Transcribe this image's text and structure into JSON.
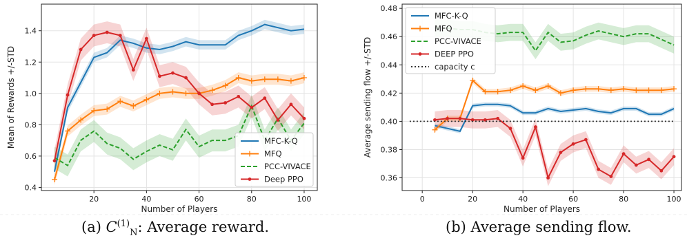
{
  "captions": {
    "a_prefix": "(a) ",
    "a_symbol_base": "C",
    "a_symbol_sub": "N",
    "a_symbol_sup": "(1)",
    "a_suffix": ": Average reward.",
    "b": "(b) Average sending flow."
  },
  "chart_data": [
    {
      "type": "line",
      "title": "",
      "xlabel": "Number of Players",
      "ylabel": "Mean of Rewards +/-STD",
      "xlim": [
        0,
        105
      ],
      "ylim": [
        0.38,
        1.57
      ],
      "xticks": [
        20,
        40,
        60,
        80,
        100
      ],
      "yticks": [
        0.4,
        0.6,
        0.8,
        1.0,
        1.2,
        1.4
      ],
      "ytick_labels": [
        "0.4",
        "0.6",
        "0.8",
        "1.0",
        "1.2",
        "1.4"
      ],
      "grid": true,
      "legend_position": "lower-right",
      "series": [
        {
          "name": "MFC-K-Q",
          "color": "#1f77b4",
          "style": "solid",
          "marker": "none",
          "band": 0.03,
          "x": [
            5,
            10,
            15,
            20,
            25,
            30,
            35,
            40,
            45,
            50,
            55,
            60,
            65,
            70,
            75,
            80,
            85,
            90,
            95,
            100
          ],
          "values": [
            0.5,
            0.91,
            1.07,
            1.23,
            1.26,
            1.34,
            1.32,
            1.29,
            1.28,
            1.3,
            1.33,
            1.31,
            1.31,
            1.31,
            1.37,
            1.4,
            1.44,
            1.42,
            1.4,
            1.41
          ]
        },
        {
          "name": "MFQ",
          "color": "#ff7f0e",
          "style": "solid",
          "marker": "plus",
          "band": 0.035,
          "x": [
            5,
            10,
            15,
            20,
            25,
            30,
            35,
            40,
            45,
            50,
            55,
            60,
            65,
            70,
            75,
            80,
            85,
            90,
            95,
            100
          ],
          "values": [
            0.45,
            0.76,
            0.83,
            0.89,
            0.9,
            0.95,
            0.92,
            0.96,
            1.0,
            1.01,
            1.0,
            1.0,
            1.02,
            1.05,
            1.1,
            1.08,
            1.09,
            1.09,
            1.08,
            1.1
          ]
        },
        {
          "name": "PCC-VIVACE",
          "color": "#2ca02c",
          "style": "dashed",
          "marker": "none",
          "band": 0.07,
          "x": [
            5,
            10,
            15,
            20,
            25,
            30,
            35,
            40,
            45,
            50,
            55,
            60,
            65,
            70,
            75,
            80,
            85,
            90,
            95,
            100
          ],
          "values": [
            0.59,
            0.54,
            0.7,
            0.76,
            0.68,
            0.65,
            0.58,
            0.63,
            0.67,
            0.64,
            0.77,
            0.66,
            0.7,
            0.7,
            0.73,
            0.92,
            0.7,
            0.84,
            0.7,
            0.81
          ]
        },
        {
          "name": "Deep PPO",
          "color": "#d62728",
          "style": "solid",
          "marker": "dot",
          "band": 0.07,
          "x": [
            5,
            10,
            15,
            20,
            25,
            30,
            35,
            40,
            45,
            50,
            55,
            60,
            65,
            70,
            75,
            80,
            85,
            90,
            95,
            100
          ],
          "values": [
            0.57,
            0.99,
            1.28,
            1.37,
            1.39,
            1.37,
            1.15,
            1.35,
            1.11,
            1.13,
            1.1,
            1.0,
            0.93,
            0.94,
            0.98,
            0.91,
            0.97,
            0.83,
            0.93,
            0.84
          ]
        }
      ]
    },
    {
      "type": "line",
      "title": "",
      "xlabel": "Number of Players",
      "ylabel": "Average sending flow +/-STD",
      "xlim": [
        -8,
        103
      ],
      "ylim": [
        0.351,
        0.483
      ],
      "xticks": [
        0,
        20,
        40,
        60,
        80,
        100
      ],
      "yticks": [
        0.36,
        0.38,
        0.4,
        0.42,
        0.44,
        0.46,
        0.48
      ],
      "ytick_labels": [
        "0.36",
        "0.38",
        "0.40",
        "0.42",
        "0.44",
        "0.46",
        "0.48"
      ],
      "grid": true,
      "legend_position": "top-left",
      "series": [
        {
          "name": "MFC-K-Q",
          "color": "#1f77b4",
          "style": "solid",
          "marker": "none",
          "band": 0.0015,
          "x": [
            5,
            10,
            15,
            20,
            25,
            30,
            35,
            40,
            45,
            50,
            55,
            60,
            65,
            70,
            75,
            80,
            85,
            90,
            95,
            100
          ],
          "values": [
            0.397,
            0.395,
            0.393,
            0.411,
            0.412,
            0.412,
            0.411,
            0.406,
            0.406,
            0.409,
            0.407,
            0.408,
            0.409,
            0.407,
            0.406,
            0.409,
            0.409,
            0.405,
            0.405,
            0.409
          ]
        },
        {
          "name": "MFQ",
          "color": "#ff7f0e",
          "style": "solid",
          "marker": "plus",
          "band": 0.002,
          "x": [
            5,
            10,
            15,
            20,
            25,
            30,
            35,
            40,
            45,
            50,
            55,
            60,
            65,
            70,
            75,
            80,
            85,
            90,
            95,
            100
          ],
          "values": [
            0.394,
            0.402,
            0.402,
            0.429,
            0.421,
            0.421,
            0.422,
            0.425,
            0.422,
            0.425,
            0.42,
            0.422,
            0.423,
            0.423,
            0.422,
            0.423,
            0.422,
            0.422,
            0.422,
            0.423
          ]
        },
        {
          "name": "PCC-VIVACE",
          "color": "#2ca02c",
          "style": "dashed",
          "marker": "none",
          "band": 0.006,
          "x": [
            5,
            10,
            15,
            20,
            25,
            30,
            35,
            40,
            45,
            50,
            55,
            60,
            65,
            70,
            75,
            80,
            85,
            90,
            95,
            100
          ],
          "values": [
            0.466,
            0.466,
            0.465,
            0.465,
            0.463,
            0.462,
            0.463,
            0.463,
            0.45,
            0.463,
            0.456,
            0.457,
            0.461,
            0.464,
            0.462,
            0.46,
            0.462,
            0.462,
            0.458,
            0.454
          ]
        },
        {
          "name": "DEEP PPO",
          "color": "#d62728",
          "style": "solid",
          "marker": "dot",
          "band": 0.006,
          "x": [
            5,
            10,
            15,
            20,
            25,
            30,
            35,
            40,
            45,
            50,
            55,
            60,
            65,
            70,
            75,
            80,
            85,
            90,
            95,
            100
          ],
          "values": [
            0.401,
            0.402,
            0.402,
            0.401,
            0.401,
            0.402,
            0.395,
            0.374,
            0.396,
            0.36,
            0.378,
            0.384,
            0.387,
            0.366,
            0.361,
            0.377,
            0.369,
            0.373,
            0.365,
            0.375
          ]
        },
        {
          "name": "capacity c",
          "color": "#333333",
          "style": "dotted",
          "marker": "none",
          "band": 0,
          "x": [
            -5,
            100
          ],
          "values": [
            0.4,
            0.4
          ]
        }
      ]
    }
  ]
}
